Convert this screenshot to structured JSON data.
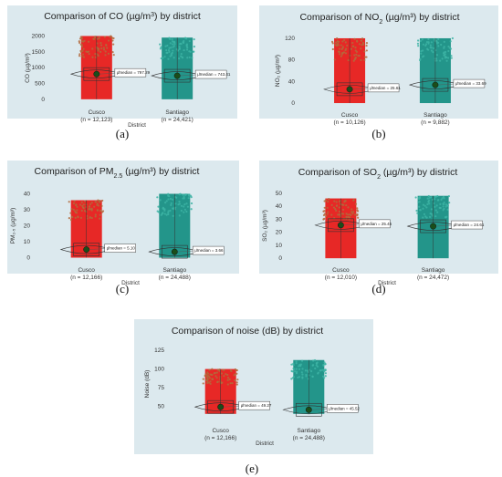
{
  "panel_labels": [
    "(a)",
    "(b)",
    "(c)",
    "(d)",
    "(e)"
  ],
  "chart_data": [
    {
      "type": "scatter",
      "title_main": "Comparison of CO (µg/m",
      "title_sup": "3",
      "title_rest": ") by district",
      "ylabel": "CO (µg/m³)",
      "xlabel": "District",
      "yticks": [
        0,
        500,
        1000,
        1500,
        2000
      ],
      "ylim": [
        -120,
        2100
      ],
      "categories": [
        "Cusco",
        "Santiago"
      ],
      "n_labels": [
        "(n = 12,123)",
        "(n = 24,421)"
      ],
      "medians": [
        797.29,
        743.41
      ],
      "median_labels": [
        "μ̂median = 797.29",
        "μ̂median = 743.41"
      ],
      "ranges": [
        [
          0,
          2000
        ],
        [
          0,
          1950
        ]
      ],
      "colors": [
        "#e8130f",
        "#0e8c7e"
      ],
      "violin_width": [
        0.55,
        0.55
      ]
    },
    {
      "type": "scatter",
      "title_main": "Comparison of NO",
      "title_sup": "2",
      "title_rest": " (µg/m³) by district",
      "ylabel": "NO₂ (µg/m³)",
      "xlabel": "",
      "yticks": [
        0,
        40,
        80,
        120
      ],
      "ylim": [
        -5,
        125
      ],
      "categories": [
        "Cusco",
        "Santiago"
      ],
      "n_labels": [
        "(n = 10,126)",
        "(n = 9,882)"
      ],
      "medians": [
        25.61,
        33.69
      ],
      "median_labels": [
        "μ̂median = 25.61",
        "μ̂median = 33.69"
      ],
      "ranges": [
        [
          0,
          120
        ],
        [
          0,
          120
        ]
      ],
      "colors": [
        "#e8130f",
        "#0e8c7e"
      ],
      "violin_width": [
        0.6,
        0.6
      ]
    },
    {
      "type": "scatter",
      "title_main": "Comparison of PM",
      "title_sup": "2.5",
      "title_rest": " (µg/m³) by district",
      "ylabel": "PM₂.₅ (µg/m³)",
      "xlabel": "District",
      "yticks": [
        0,
        10,
        20,
        30,
        40
      ],
      "ylim": [
        -2,
        42
      ],
      "categories": [
        "Cusco",
        "Santiago"
      ],
      "n_labels": [
        "(n = 12,166)",
        "(n = 24,488)"
      ],
      "medians": [
        5.1,
        3.66
      ],
      "median_labels": [
        "μ̂median = 5.10",
        "μ̂median = 3.66"
      ],
      "ranges": [
        [
          0,
          36
        ],
        [
          0,
          40
        ]
      ],
      "colors": [
        "#e8130f",
        "#0e8c7e"
      ],
      "violin_width": [
        0.6,
        0.6
      ]
    },
    {
      "type": "scatter",
      "title_main": "Comparison of SO",
      "title_sup": "2",
      "title_rest": " (µg/m³) by district",
      "ylabel": "SO₂ (µg/m³)",
      "xlabel": "District",
      "yticks": [
        0,
        10,
        20,
        30,
        40,
        50
      ],
      "ylim": [
        -2,
        52
      ],
      "categories": [
        "Cusco",
        "Santiago"
      ],
      "n_labels": [
        "(n = 12,010)",
        "(n = 24,472)"
      ],
      "medians": [
        25.45,
        24.61
      ],
      "median_labels": [
        "μ̂median = 25.45",
        "μ̂median = 24.61"
      ],
      "ranges": [
        [
          0,
          46
        ],
        [
          0,
          48
        ]
      ],
      "colors": [
        "#e8130f",
        "#0e8c7e"
      ],
      "violin_width": [
        0.6,
        0.6
      ]
    },
    {
      "type": "scatter",
      "title_main": "Comparison of noise (dB) by district",
      "title_sup": "",
      "title_rest": "",
      "ylabel": "Noise (dB)",
      "xlabel": "District",
      "yticks": [
        50,
        75,
        100,
        125
      ],
      "ylim": [
        30,
        130
      ],
      "categories": [
        "Cusco",
        "Santiago"
      ],
      "n_labels": [
        "(n = 12,166)",
        "(n = 24,488)"
      ],
      "medians": [
        49.27,
        45.52
      ],
      "median_labels": [
        "μ̂median = 49.27",
        "μ̂median = 45.52"
      ],
      "ranges": [
        [
          40,
          100
        ],
        [
          40,
          112
        ]
      ],
      "colors": [
        "#e8130f",
        "#0e8c7e"
      ],
      "violin_width": [
        0.6,
        0.6
      ]
    }
  ]
}
